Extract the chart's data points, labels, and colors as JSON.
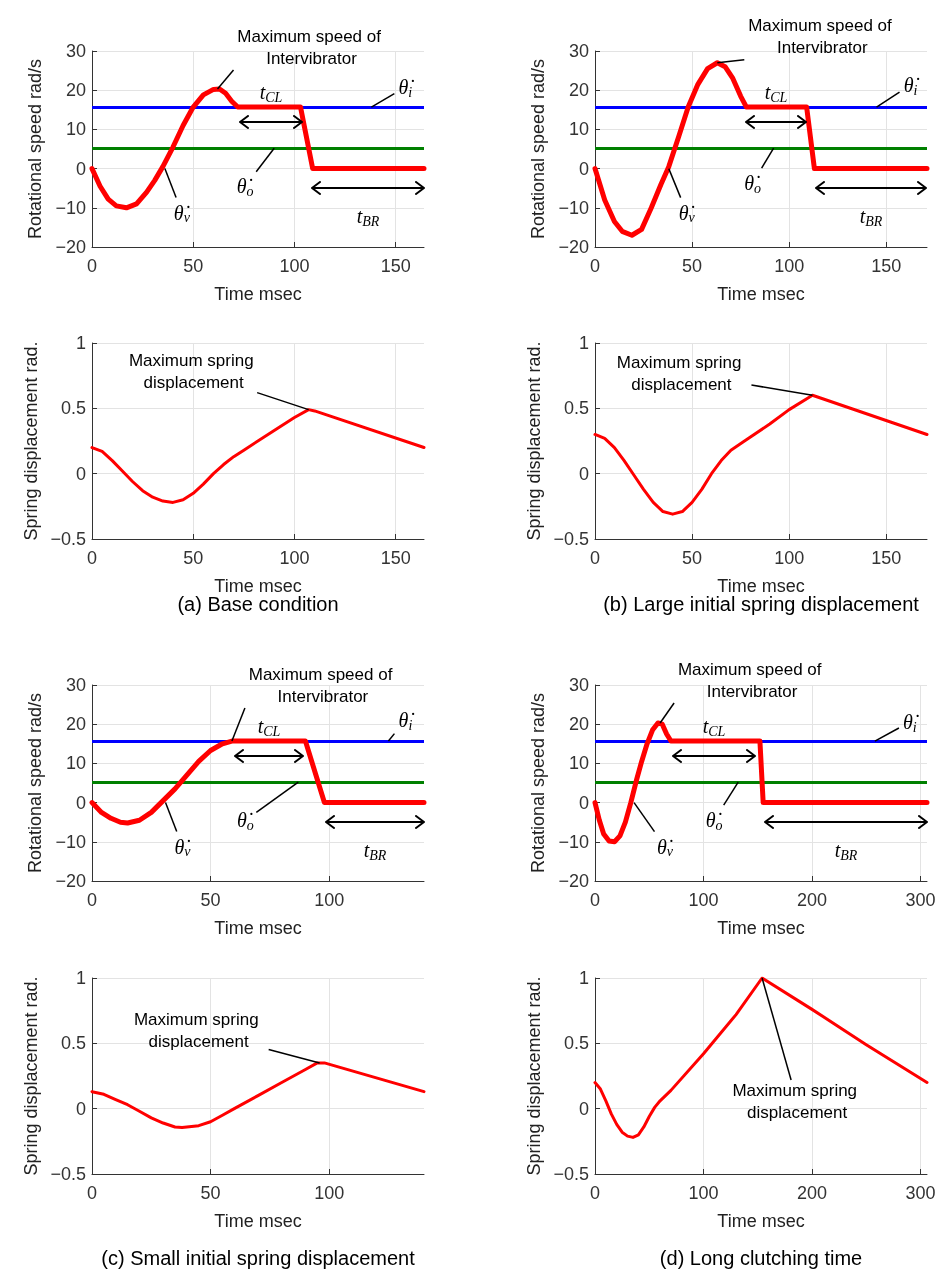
{
  "chart_data": [
    {
      "type": "line",
      "xlabel": "Time msec",
      "ylabel": "Rotational speed rad/s",
      "xlim": [
        0,
        164
      ],
      "ylim": [
        -20,
        30
      ],
      "xticks": [
        0,
        50,
        100,
        150
      ],
      "yticks": [
        -20,
        -10,
        0,
        10,
        20,
        30
      ],
      "grid": true,
      "marker": "none",
      "series": [
        {
          "color": "#ff0000",
          "x": [
            0,
            4,
            8,
            12,
            17,
            22,
            27,
            31,
            35,
            40,
            45,
            50,
            55,
            60,
            63,
            66,
            69,
            72,
            103,
            109,
            164
          ],
          "values": [
            0,
            -4.5,
            -7.8,
            -9.5,
            -10,
            -9,
            -6,
            -3,
            0.5,
            5.5,
            11,
            15.7,
            18.8,
            20.2,
            20.3,
            19.2,
            17.2,
            15.7,
            15.7,
            0,
            0
          ]
        }
      ],
      "ref_lines": [
        {
          "axis": "y",
          "value": 15.7,
          "color": "#0000ff"
        },
        {
          "axis": "y",
          "value": 5.2,
          "color": "#008000"
        }
      ],
      "annotations": [
        {
          "text": "Maximum speed of Intervibrator",
          "x": 62,
          "y": 20.3
        },
        {
          "text": "θ̇$_{i}$",
          "x": 138,
          "y": 15.7
        },
        {
          "text": "θ̇$_{o}$",
          "x": 90,
          "y": 5.2
        },
        {
          "text": "θ̇$_{v}$",
          "x": 36,
          "y": 0
        },
        "t$_{CL}$",
        "t$_{BR}$"
      ]
    },
    {
      "type": "line",
      "xlabel": "Time msec",
      "ylabel": "Rotational speed rad/s",
      "xlim": [
        0,
        171
      ],
      "ylim": [
        -20,
        30
      ],
      "xticks": [
        0,
        50,
        100,
        150
      ],
      "yticks": [
        -20,
        -10,
        0,
        10,
        20,
        30
      ],
      "grid": true,
      "marker": "none",
      "series": [
        {
          "color": "#ff0000",
          "x": [
            0,
            5,
            10,
            14,
            19,
            24,
            29,
            34,
            38,
            43,
            48,
            53,
            58,
            63,
            67,
            71,
            75,
            78,
            109,
            113,
            171
          ],
          "values": [
            0,
            -8,
            -13.5,
            -16,
            -17,
            -15.5,
            -10,
            -4,
            0.5,
            8,
            15.7,
            21.5,
            25.5,
            27,
            26,
            23,
            18.5,
            15.7,
            15.7,
            0,
            0
          ]
        }
      ],
      "ref_lines": [
        {
          "axis": "y",
          "value": 15.7,
          "color": "#0000ff"
        },
        {
          "axis": "y",
          "value": 5.2,
          "color": "#008000"
        }
      ],
      "annotations": [
        {
          "text": "Maximum speed of Intervibrator",
          "x": 63,
          "y": 27
        },
        {
          "text": "θ̇$_{i}$",
          "x": 145,
          "y": 15.7
        },
        {
          "text": "θ̇$_{o}$",
          "x": 92,
          "y": 5.2
        },
        {
          "text": "θ̇$_{v}$",
          "x": 38,
          "y": 0
        },
        "t$_{CL}$",
        "t$_{BR}$"
      ]
    },
    {
      "type": "line",
      "xlabel": "Time msec",
      "ylabel": "Spring displacement rad.",
      "xlim": [
        0,
        164
      ],
      "ylim": [
        -0.5,
        1
      ],
      "xticks": [
        0,
        50,
        100,
        150
      ],
      "yticks": [
        -0.5,
        0,
        0.5,
        1
      ],
      "grid": true,
      "marker": "none",
      "series": [
        {
          "color": "#ff0000",
          "x": [
            0,
            5,
            10,
            15,
            20,
            25,
            30,
            35,
            40,
            45,
            50,
            55,
            60,
            65,
            70,
            75,
            90,
            100,
            107,
            110,
            164
          ],
          "values": [
            0.2,
            0.17,
            0.1,
            0.02,
            -0.06,
            -0.13,
            -0.18,
            -0.21,
            -0.22,
            -0.2,
            -0.15,
            -0.08,
            0,
            0.07,
            0.13,
            0.18,
            0.33,
            0.43,
            0.49,
            0.48,
            0.2
          ]
        }
      ],
      "annotations": [
        {
          "text": "Maximum spring displacement",
          "x": 107,
          "y": 0.49
        },
        "(a) Base condition"
      ]
    },
    {
      "type": "line",
      "xlabel": "Time msec",
      "ylabel": "Spring displacement rad.",
      "xlim": [
        0,
        171
      ],
      "ylim": [
        -0.5,
        1
      ],
      "xticks": [
        0,
        50,
        100,
        150
      ],
      "yticks": [
        -0.5,
        0,
        0.5,
        1
      ],
      "grid": true,
      "marker": "none",
      "series": [
        {
          "color": "#ff0000",
          "x": [
            0,
            5,
            10,
            15,
            20,
            25,
            30,
            35,
            40,
            45,
            50,
            55,
            60,
            65,
            70,
            77,
            90,
            100,
            112,
            171
          ],
          "values": [
            0.3,
            0.27,
            0.2,
            0.1,
            -0.01,
            -0.12,
            -0.22,
            -0.29,
            -0.31,
            -0.29,
            -0.22,
            -0.12,
            0,
            0.1,
            0.18,
            0.25,
            0.38,
            0.49,
            0.6,
            0.3
          ]
        }
      ],
      "annotations": [
        {
          "text": "Maximum spring displacement",
          "x": 112,
          "y": 0.6
        },
        "(b) Large initial spring displacement"
      ]
    },
    {
      "type": "line",
      "xlabel": "Time msec",
      "ylabel": "Rotational speed rad/s",
      "xlim": [
        0,
        140
      ],
      "ylim": [
        -20,
        30
      ],
      "xticks": [
        0,
        50,
        100
      ],
      "yticks": [
        -20,
        -10,
        0,
        10,
        20,
        30
      ],
      "grid": true,
      "marker": "none",
      "series": [
        {
          "color": "#ff0000",
          "x": [
            0,
            4,
            8,
            12,
            15,
            20,
            25,
            30,
            35,
            40,
            45,
            50,
            55,
            59,
            90,
            98,
            140
          ],
          "values": [
            0,
            -2.5,
            -4,
            -5,
            -5.2,
            -4.5,
            -2.5,
            0.5,
            3.5,
            7,
            10.5,
            13.3,
            15,
            15.7,
            15.7,
            0,
            0
          ]
        }
      ],
      "ref_lines": [
        {
          "axis": "y",
          "value": 15.7,
          "color": "#0000ff"
        },
        {
          "axis": "y",
          "value": 5.2,
          "color": "#008000"
        }
      ],
      "annotations": [
        {
          "text": "Maximum speed of Intervibrator",
          "x": 59,
          "y": 15.7
        },
        {
          "text": "θ̇$_{i}$",
          "x": 125,
          "y": 15.7
        },
        {
          "text": "θ̇$_{o}$",
          "x": 87,
          "y": 5.2
        },
        {
          "text": "θ̇$_{v}$",
          "x": 31,
          "y": 0
        },
        "t$_{CL}$",
        "t$_{BR}$"
      ]
    },
    {
      "type": "line",
      "xlabel": "Time msec",
      "ylabel": "Rotational speed rad/s",
      "xlim": [
        0,
        306
      ],
      "ylim": [
        -20,
        30
      ],
      "xticks": [
        0,
        100,
        200,
        300
      ],
      "yticks": [
        -20,
        -10,
        0,
        10,
        20,
        30
      ],
      "grid": true,
      "marker": "none",
      "series": [
        {
          "color": "#ff0000",
          "x": [
            0,
            4,
            8,
            13,
            18,
            23,
            28,
            33,
            38,
            43,
            48,
            53,
            58,
            62,
            66,
            70,
            152,
            155,
            306
          ],
          "values": [
            0,
            -4.5,
            -8,
            -9.8,
            -10,
            -8.5,
            -5,
            0,
            5.5,
            10.5,
            15,
            18.5,
            20.3,
            20,
            17.5,
            15.7,
            15.7,
            0,
            0
          ]
        }
      ],
      "ref_lines": [
        {
          "axis": "y",
          "value": 15.7,
          "color": "#0000ff"
        },
        {
          "axis": "y",
          "value": 5.2,
          "color": "#008000"
        }
      ],
      "annotations": [
        {
          "text": "Maximum speed of Intervibrator",
          "x": 60,
          "y": 20.3
        },
        {
          "text": "θ̇$_{i}$",
          "x": 258,
          "y": 15.7
        },
        {
          "text": "θ̇$_{o}$",
          "x": 132,
          "y": 5.2
        },
        {
          "text": "θ̇$_{v}$",
          "x": 36,
          "y": 0
        },
        "t$_{CL}$",
        "t$_{BR}$"
      ]
    },
    {
      "type": "line",
      "xlabel": "Time msec",
      "ylabel": "Spring displacement rad.",
      "xlim": [
        0,
        140
      ],
      "ylim": [
        -0.5,
        1
      ],
      "xticks": [
        0,
        50,
        100
      ],
      "yticks": [
        -0.5,
        0,
        0.5,
        1
      ],
      "grid": true,
      "marker": "none",
      "series": [
        {
          "color": "#ff0000",
          "x": [
            0,
            5,
            10,
            15,
            20,
            25,
            30,
            35,
            38,
            45,
            50,
            55,
            60,
            70,
            80,
            90,
            95,
            98,
            140
          ],
          "values": [
            0.13,
            0.11,
            0.07,
            0.03,
            -0.02,
            -0.07,
            -0.11,
            -0.14,
            -0.145,
            -0.13,
            -0.1,
            -0.05,
            0,
            0.1,
            0.2,
            0.3,
            0.35,
            0.35,
            0.13
          ]
        }
      ],
      "annotations": [
        {
          "text": "Maximum spring displacement",
          "x": 96,
          "y": 0.35
        },
        "(c) Small initial spring displacement"
      ]
    },
    {
      "type": "line",
      "xlabel": "Time msec",
      "ylabel": "Spring displacement rad.",
      "xlim": [
        0,
        306
      ],
      "ylim": [
        -0.5,
        1
      ],
      "xticks": [
        0,
        100,
        200,
        300
      ],
      "yticks": [
        -0.5,
        0,
        0.5,
        1
      ],
      "grid": true,
      "marker": "none",
      "series": [
        {
          "color": "#ff0000",
          "x": [
            0,
            5,
            10,
            15,
            20,
            25,
            30,
            35,
            40,
            45,
            50,
            55,
            60,
            65,
            70,
            100,
            130,
            154,
            200,
            250,
            306
          ],
          "values": [
            0.2,
            0.15,
            0.06,
            -0.04,
            -0.12,
            -0.18,
            -0.21,
            -0.22,
            -0.2,
            -0.14,
            -0.06,
            0.01,
            0.06,
            0.1,
            0.14,
            0.42,
            0.72,
            1,
            0.76,
            0.49,
            0.2
          ]
        }
      ],
      "annotations": [
        {
          "text": "Maximum spring displacement",
          "x": 154,
          "y": 1
        },
        "(d) Long clutching time"
      ]
    }
  ]
}
